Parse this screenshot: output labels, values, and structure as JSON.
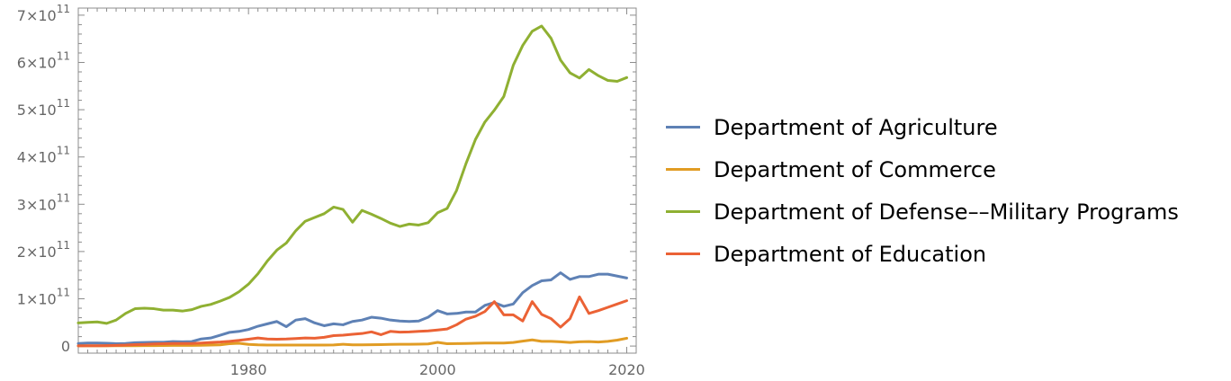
{
  "chart_data": {
    "type": "line",
    "title": "",
    "xlabel": "",
    "ylabel": "",
    "xlim": [
      1962,
      2021
    ],
    "ylim": [
      -15000000000,
      715000000000
    ],
    "x_ticks": [
      {
        "value": 1980,
        "label": "1980"
      },
      {
        "value": 2000,
        "label": "2000"
      },
      {
        "value": 2020,
        "label": "2020"
      }
    ],
    "y_ticks": [
      {
        "value": 0,
        "label": "0"
      },
      {
        "value": 100000000000,
        "mant": "1",
        "exp": "11"
      },
      {
        "value": 200000000000,
        "mant": "2",
        "exp": "11"
      },
      {
        "value": 300000000000,
        "mant": "3",
        "exp": "11"
      },
      {
        "value": 400000000000,
        "mant": "4",
        "exp": "11"
      },
      {
        "value": 500000000000,
        "mant": "5",
        "exp": "11"
      },
      {
        "value": 600000000000,
        "mant": "6",
        "exp": "11"
      },
      {
        "value": 700000000000,
        "mant": "7",
        "exp": "11"
      }
    ],
    "grid": false,
    "legend_position": "right",
    "x": [
      1962,
      1963,
      1964,
      1965,
      1966,
      1967,
      1968,
      1969,
      1970,
      1971,
      1972,
      1973,
      1974,
      1975,
      1976,
      1977,
      1978,
      1979,
      1980,
      1981,
      1982,
      1983,
      1984,
      1985,
      1986,
      1987,
      1988,
      1989,
      1990,
      1991,
      1992,
      1993,
      1994,
      1995,
      1996,
      1997,
      1998,
      1999,
      2000,
      2001,
      2002,
      2003,
      2004,
      2005,
      2006,
      2007,
      2008,
      2009,
      2010,
      2011,
      2012,
      2013,
      2014,
      2015,
      2016,
      2017,
      2018,
      2019,
      2020
    ],
    "series": [
      {
        "name": "Department of Agriculture",
        "color": "#5e81b5",
        "values": [
          5.5,
          6.5,
          6.5,
          6,
          5,
          5.5,
          7,
          7.5,
          8,
          8,
          9.5,
          9,
          9.5,
          15,
          17,
          23,
          29,
          31,
          35,
          42,
          47,
          52,
          41,
          55,
          58,
          49,
          43,
          47,
          45,
          52,
          55,
          61,
          59,
          55,
          53,
          52,
          53,
          61,
          75,
          68,
          69,
          72,
          72,
          86,
          92,
          84,
          89,
          113,
          128,
          138,
          140,
          155,
          141,
          147,
          147,
          152,
          152,
          148,
          144
        ]
      },
      {
        "name": "Department of Commerce",
        "color": "#e19c24",
        "values": [
          0.5,
          0.5,
          0.5,
          0.5,
          0.7,
          0.8,
          0.8,
          0.9,
          1,
          1.2,
          1.3,
          1.4,
          1.5,
          1.7,
          2.0,
          2.5,
          5,
          6,
          3.5,
          2.5,
          2,
          2,
          2,
          2,
          2,
          2,
          2,
          2.3,
          3.8,
          2.5,
          2.7,
          2.9,
          3.1,
          3.5,
          3.7,
          3.8,
          4.0,
          4.5,
          7.8,
          5.0,
          5.3,
          5.5,
          5.8,
          6.3,
          6.3,
          6.5,
          7.5,
          10.5,
          13.0,
          10.0,
          10.0,
          9.0,
          7.5,
          9.0,
          9.5,
          8.5,
          10.0,
          12.5,
          16.5
        ]
      },
      {
        "name": "Department of Defense––Military Programs",
        "color": "#8fb032",
        "values": [
          49,
          50,
          51,
          48,
          55,
          69,
          79,
          80,
          79,
          76,
          76,
          74,
          77,
          84,
          88,
          95,
          103,
          115,
          131,
          153,
          180,
          203,
          218,
          244,
          264,
          272,
          280,
          294,
          289,
          262,
          287,
          279,
          270,
          260,
          253,
          258,
          256,
          261,
          282,
          291,
          329,
          386,
          437,
          474,
          499,
          528,
          594,
          636,
          666,
          677,
          651,
          605,
          578,
          567,
          585,
          572,
          562,
          560,
          568
        ]
      },
      {
        "name": "Department of Education",
        "color": "#eb6235",
        "values": [
          0.5,
          0.7,
          0.7,
          1.0,
          1.5,
          2,
          3,
          3.5,
          4.5,
          5,
          5.5,
          5.5,
          5.5,
          6.5,
          7.5,
          8.5,
          10,
          12,
          14.5,
          17,
          15,
          14.5,
          15,
          16,
          17,
          16.5,
          18.5,
          22,
          23,
          25,
          26.5,
          30,
          24,
          31,
          29.5,
          30,
          31,
          32,
          34,
          36,
          45,
          57,
          63,
          73,
          94,
          66,
          66,
          53,
          94,
          67,
          58,
          40,
          58,
          104,
          69,
          75,
          82,
          89,
          96
        ]
      }
    ],
    "units_per_value": 1000000000
  }
}
